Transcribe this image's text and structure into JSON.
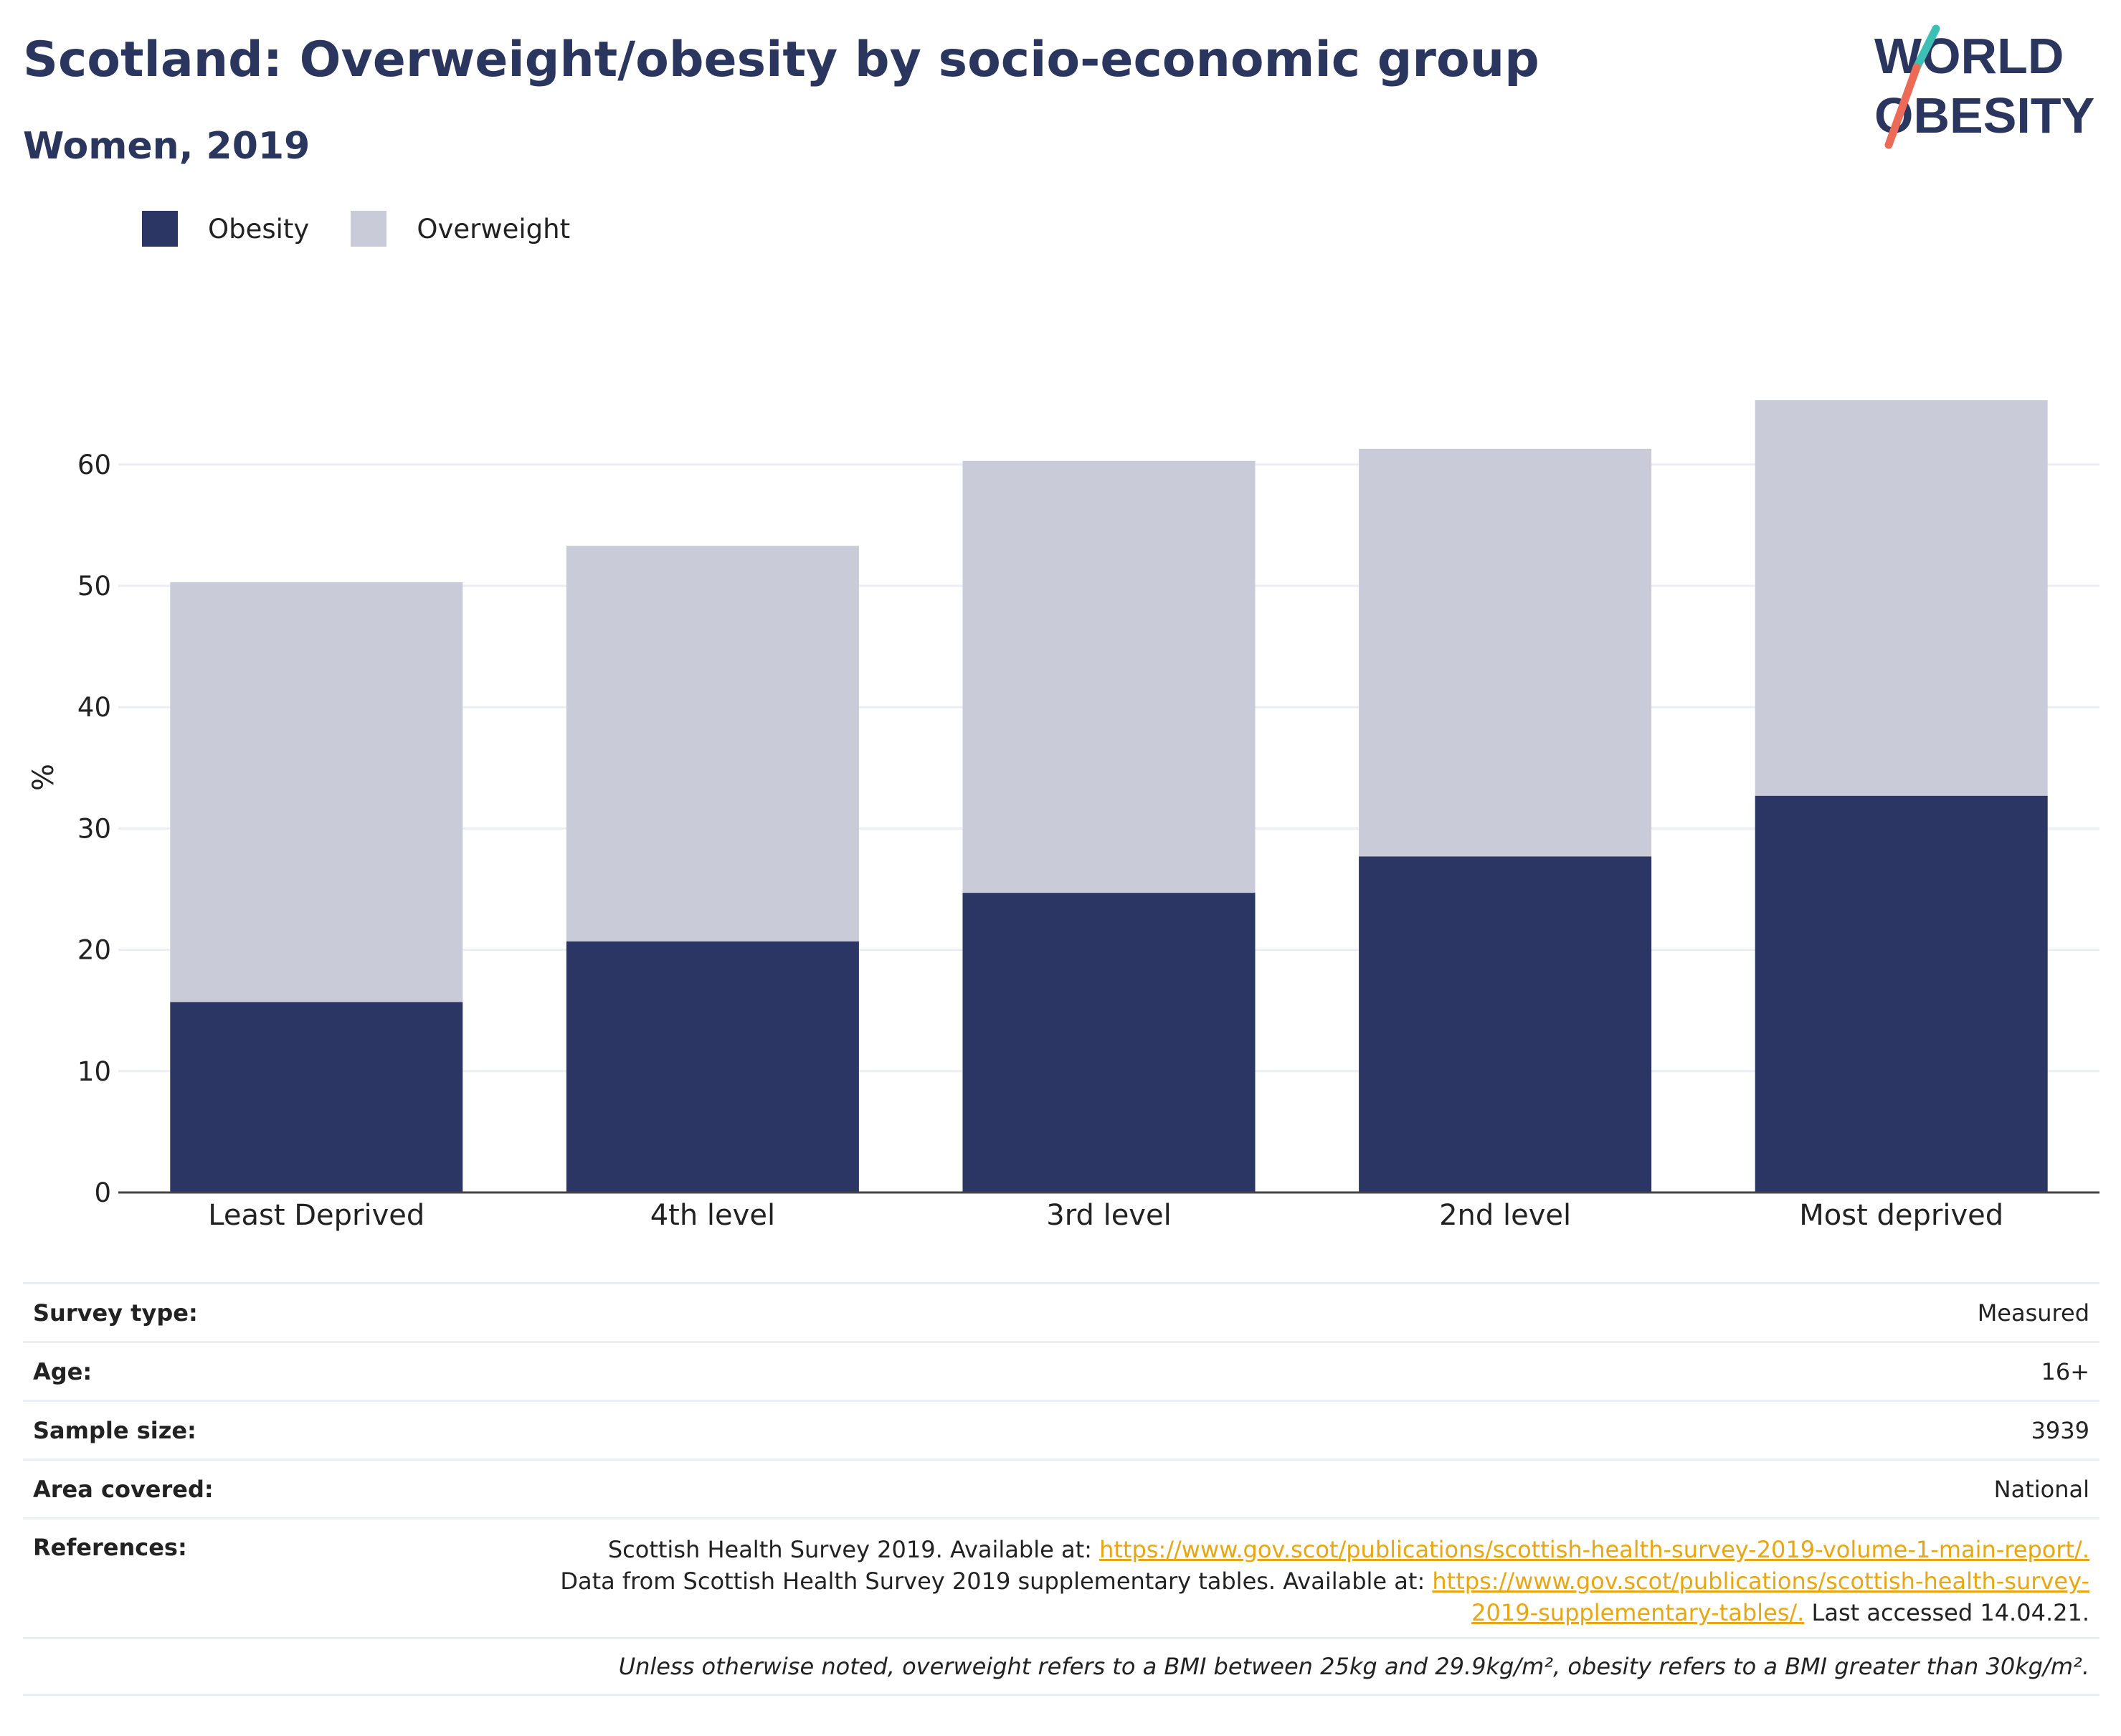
{
  "header": {
    "title": "Scotland: Overweight/obesity by socio-economic group",
    "subtitle": "Women, 2019"
  },
  "logo": {
    "line1": "WORLD",
    "line2": "OBESITY",
    "accent_teal": "#3cbfb4",
    "accent_coral": "#ec6b56"
  },
  "legend": {
    "obesity": "Obesity",
    "overweight": "Overweight"
  },
  "colors": {
    "obesity": "#2b3664",
    "overweight": "#c9ccd8",
    "grid": "#eceef3",
    "axis": "#444444",
    "text_dark": "#2b365f"
  },
  "chart_data": {
    "type": "bar",
    "stacked": true,
    "categories": [
      "Least Deprived",
      "4th level",
      "3rd level",
      "2nd level",
      "Most deprived"
    ],
    "series": [
      {
        "name": "Obesity",
        "values": [
          15.7,
          20.7,
          24.7,
          27.7,
          32.7
        ]
      },
      {
        "name": "Overweight",
        "values": [
          34.6,
          32.6,
          35.6,
          33.6,
          32.6
        ]
      }
    ],
    "ylabel": "%",
    "ylim": [
      0,
      70
    ],
    "yticks": [
      0,
      10,
      20,
      30,
      40,
      50,
      60
    ],
    "grid": true,
    "legend_position": "top-left"
  },
  "meta": {
    "survey_type": {
      "label": "Survey type:",
      "value": "Measured"
    },
    "age": {
      "label": "Age:",
      "value": "16+"
    },
    "sample_size": {
      "label": "Sample size:",
      "value": "3939"
    },
    "area_covered": {
      "label": "Area covered:",
      "value": "National"
    },
    "references": {
      "label": "References:",
      "ref1_text": "Scottish Health Survey 2019. Available at: ",
      "ref1_link": "https://www.gov.scot/publications/scottish-health-survey-2019-volume-1-main-report/.",
      "ref2_text": "Data from Scottish Health Survey 2019 supplementary tables. Available at: ",
      "ref2_link_a": "https://www.gov.scot/publications/scottish-health-survey-",
      "ref2_link_b": "2019-supplementary-tables/.",
      "ref2_suffix": " Last accessed 14.04.21."
    },
    "note": "Unless otherwise noted, overweight refers to a BMI between 25kg and 29.9kg/m², obesity refers to a BMI greater than 30kg/m²."
  }
}
